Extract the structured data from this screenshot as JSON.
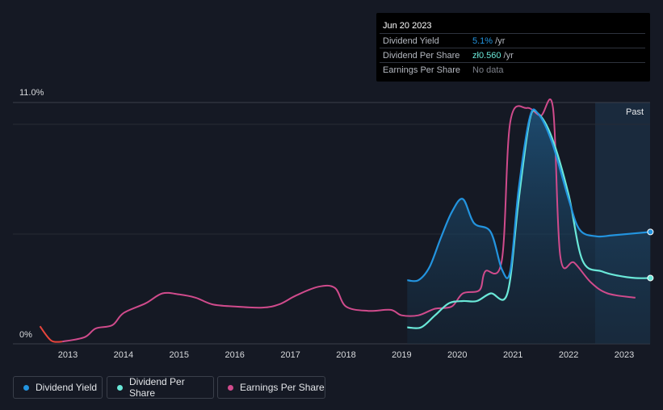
{
  "tooltip": {
    "date": "Jun 20 2023",
    "rows": [
      {
        "label": "Dividend Yield",
        "value": "5.1%",
        "unit": " /yr",
        "color": "#2394df"
      },
      {
        "label": "Dividend Per Share",
        "value": "zł0.560",
        "unit": " /yr",
        "color": "#6ae8d8"
      },
      {
        "label": "Earnings Per Share",
        "value": "No data",
        "unit": "",
        "color": "#7d818a"
      }
    ]
  },
  "past_label": "Past",
  "legend": [
    {
      "label": "Dividend Yield",
      "color": "#2394df"
    },
    {
      "label": "Dividend Per Share",
      "color": "#6ae8d8"
    },
    {
      "label": "Earnings Per Share",
      "color": "#d04b8c"
    }
  ],
  "chart_data": {
    "type": "line",
    "ylim": [
      0,
      11
    ],
    "yticks": [
      "11.0%",
      "0%"
    ],
    "xticks": [
      "2013",
      "2014",
      "2015",
      "2016",
      "2017",
      "2018",
      "2019",
      "2020",
      "2021",
      "2022",
      "2023"
    ],
    "series": [
      {
        "name": "Dividend Yield",
        "color": "#2394df",
        "points": [
          [
            2019.1,
            2.9
          ],
          [
            2019.3,
            2.9
          ],
          [
            2019.5,
            3.5
          ],
          [
            2019.7,
            4.8
          ],
          [
            2019.9,
            6.0
          ],
          [
            2020.1,
            6.6
          ],
          [
            2020.3,
            5.5
          ],
          [
            2020.6,
            5.1
          ],
          [
            2020.8,
            3.4
          ],
          [
            2020.95,
            3.3
          ],
          [
            2021.1,
            7.0
          ],
          [
            2021.3,
            10.3
          ],
          [
            2021.45,
            10.5
          ],
          [
            2021.7,
            9.2
          ],
          [
            2022.0,
            6.6
          ],
          [
            2022.2,
            5.2
          ],
          [
            2022.5,
            4.9
          ],
          [
            2022.8,
            4.95
          ],
          [
            2023.47,
            5.1
          ]
        ]
      },
      {
        "name": "Dividend Per Share",
        "color": "#6ae8d8",
        "points": [
          [
            2019.1,
            0.75
          ],
          [
            2019.35,
            0.75
          ],
          [
            2019.6,
            1.3
          ],
          [
            2019.85,
            1.85
          ],
          [
            2020.1,
            1.95
          ],
          [
            2020.35,
            1.95
          ],
          [
            2020.6,
            2.3
          ],
          [
            2020.9,
            2.3
          ],
          [
            2021.1,
            6.5
          ],
          [
            2021.3,
            10.2
          ],
          [
            2021.45,
            10.5
          ],
          [
            2021.7,
            9.4
          ],
          [
            2022.0,
            6.8
          ],
          [
            2022.25,
            3.8
          ],
          [
            2022.6,
            3.3
          ],
          [
            2022.9,
            3.1
          ],
          [
            2023.2,
            3.0
          ],
          [
            2023.47,
            3.0
          ]
        ]
      },
      {
        "name": "Earnings Per Share",
        "color": "#d04b8c",
        "points": [
          [
            2012.5,
            0.8
          ],
          [
            2012.7,
            0.15
          ],
          [
            2012.9,
            0.1
          ],
          [
            2013.3,
            0.3
          ],
          [
            2013.5,
            0.7
          ],
          [
            2013.8,
            0.85
          ],
          [
            2014.0,
            1.4
          ],
          [
            2014.4,
            1.85
          ],
          [
            2014.7,
            2.3
          ],
          [
            2015.0,
            2.25
          ],
          [
            2015.3,
            2.1
          ],
          [
            2015.6,
            1.8
          ],
          [
            2016.0,
            1.7
          ],
          [
            2016.5,
            1.65
          ],
          [
            2016.8,
            1.8
          ],
          [
            2017.1,
            2.2
          ],
          [
            2017.5,
            2.6
          ],
          [
            2017.8,
            2.55
          ],
          [
            2018.0,
            1.7
          ],
          [
            2018.4,
            1.5
          ],
          [
            2018.8,
            1.55
          ],
          [
            2019.0,
            1.3
          ],
          [
            2019.3,
            1.3
          ],
          [
            2019.6,
            1.6
          ],
          [
            2019.9,
            1.7
          ],
          [
            2020.1,
            2.3
          ],
          [
            2020.4,
            2.45
          ],
          [
            2020.5,
            3.3
          ],
          [
            2020.8,
            3.8
          ],
          [
            2020.95,
            10.1
          ],
          [
            2021.25,
            10.75
          ],
          [
            2021.5,
            10.4
          ],
          [
            2021.72,
            10.75
          ],
          [
            2021.85,
            4.0
          ],
          [
            2022.1,
            3.7
          ],
          [
            2022.4,
            2.8
          ],
          [
            2022.7,
            2.3
          ],
          [
            2023.2,
            2.1
          ]
        ]
      }
    ]
  }
}
